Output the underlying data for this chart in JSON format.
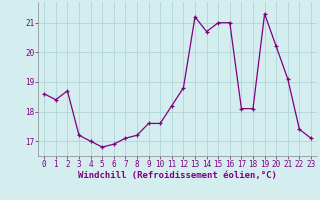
{
  "x": [
    0,
    1,
    2,
    3,
    4,
    5,
    6,
    7,
    8,
    9,
    10,
    11,
    12,
    13,
    14,
    15,
    16,
    17,
    18,
    19,
    20,
    21,
    22,
    23
  ],
  "y": [
    18.6,
    18.4,
    18.7,
    17.2,
    17.0,
    16.8,
    16.9,
    17.1,
    17.2,
    17.6,
    17.6,
    18.2,
    18.8,
    21.2,
    20.7,
    21.0,
    21.0,
    18.1,
    18.1,
    21.3,
    20.2,
    19.1,
    17.4,
    17.1
  ],
  "line_color": "#800080",
  "marker": "+",
  "marker_size": 3,
  "bg_color": "#d4eef0",
  "grid_color": "#b0d4d8",
  "xlabel": "Windchill (Refroidissement éolien,°C)",
  "ylim": [
    16.5,
    21.7
  ],
  "xlim": [
    -0.5,
    23.5
  ],
  "yticks": [
    17,
    18,
    19,
    20,
    21
  ],
  "xticks": [
    0,
    1,
    2,
    3,
    4,
    5,
    6,
    7,
    8,
    9,
    10,
    11,
    12,
    13,
    14,
    15,
    16,
    17,
    18,
    19,
    20,
    21,
    22,
    23
  ],
  "tick_fontsize": 5.5,
  "label_fontsize": 6.5
}
